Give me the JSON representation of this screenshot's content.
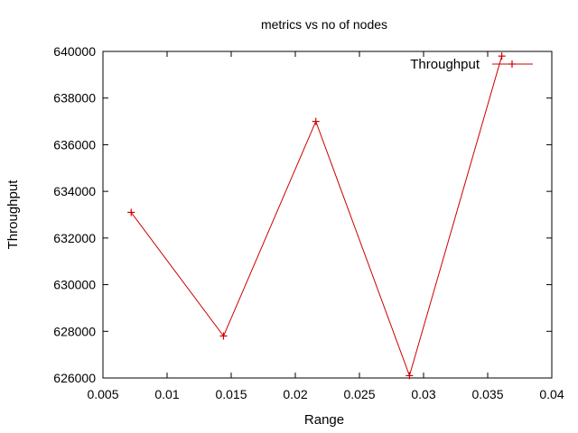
{
  "chart_data": {
    "type": "line",
    "title": "metrics vs no of nodes",
    "xlabel": "Range",
    "ylabel": "Throughput",
    "xlim": [
      0.005,
      0.04
    ],
    "ylim": [
      626000,
      640000
    ],
    "x_ticks": [
      "0.005",
      "0.01",
      "0.015",
      "0.02",
      "0.025",
      "0.03",
      "0.035",
      "0.04"
    ],
    "y_ticks": [
      "626000",
      "628000",
      "630000",
      "632000",
      "634000",
      "636000",
      "638000",
      "640000"
    ],
    "grid": false,
    "legend_position": "top-right",
    "series": [
      {
        "name": "Throughput",
        "color": "#cc0000",
        "marker": "plus",
        "x": [
          0.0072,
          0.0144,
          0.0216,
          0.0289,
          0.0361
        ],
        "y": [
          633100,
          627800,
          637000,
          626100,
          639800
        ]
      }
    ]
  }
}
